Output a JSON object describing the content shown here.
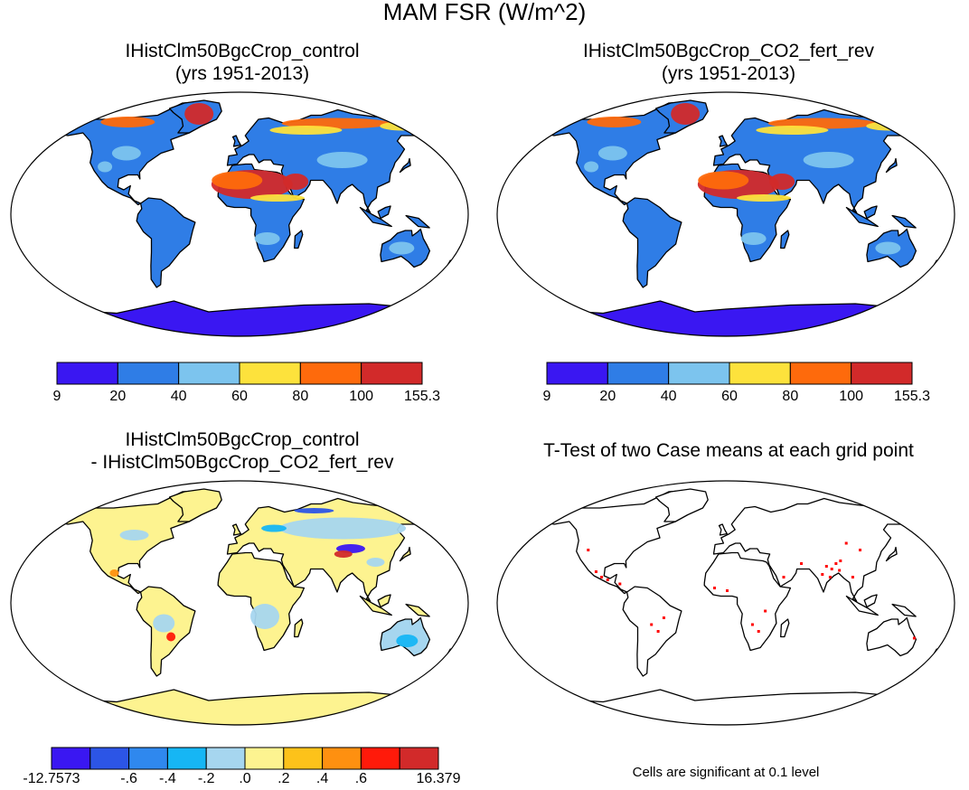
{
  "title": "MAM FSR (W/m^2)",
  "panels": [
    {
      "id": "control",
      "title_lines": [
        "IHistClm50BgcCrop_control",
        "(yrs 1951-2013)"
      ]
    },
    {
      "id": "co2",
      "title_lines": [
        "IHistClm50BgcCrop_CO2_fert_rev",
        "(yrs 1951-2013)"
      ]
    },
    {
      "id": "diff",
      "title_lines": [
        "IHistClm50BgcCrop_control",
        "- IHistClm50BgcCrop_CO2_fert_rev"
      ]
    },
    {
      "id": "ttest",
      "title_lines": [
        "T-Test of two Case means at each grid point"
      ]
    }
  ],
  "colorbar_abs": {
    "labels": [
      "9",
      "20",
      "40",
      "60",
      "80",
      "100",
      "155.3"
    ],
    "colors": [
      "#3a17f2",
      "#2f7de6",
      "#7cc4ee",
      "#fde23c",
      "#fe6a0c",
      "#d22a2a"
    ]
  },
  "colorbar_diff": {
    "labels": [
      "-12.7573",
      "-.6",
      "-.4",
      "-.2",
      ".0",
      ".2",
      ".4",
      ".6",
      "16.379"
    ],
    "label_slots": [
      0,
      2,
      3,
      4,
      5,
      6,
      7,
      8,
      10
    ],
    "colors": [
      "#3a17f2",
      "#2c55e6",
      "#2f88ee",
      "#16b6f4",
      "#a6d6ef",
      "#fdf390",
      "#fdc21a",
      "#fe9010",
      "#ff1a0a",
      "#d22a2a"
    ]
  },
  "significance_note": "Cells are significant at 0.1 level",
  "colors": {
    "land_diff": "#fdf390",
    "land_abs": "#2f7de6",
    "significant": "#ff0000"
  }
}
